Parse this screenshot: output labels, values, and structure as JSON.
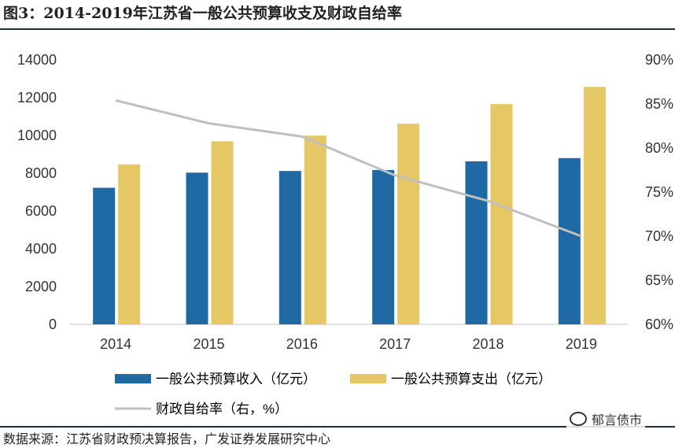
{
  "header": {
    "title": "图3：2014-2019年江苏省一般公共预算收支及财政自给率"
  },
  "footer": {
    "source": "数据来源：江苏省财政预决算报告，广发证券发展研究中心",
    "watermark": "郁言债市"
  },
  "colors": {
    "revenue": "#1f6aa5",
    "expenditure": "#e6c765",
    "ratio": "#bfbfbf",
    "axis": "#d9d9d9"
  },
  "chart_data": {
    "type": "bar",
    "categories": [
      "2014",
      "2015",
      "2016",
      "2017",
      "2018",
      "2019"
    ],
    "series": [
      {
        "name": "一般公共预算收入（亿元）",
        "type": "bar",
        "axis": "left",
        "values": [
          7230,
          8030,
          8120,
          8170,
          8630,
          8800
        ]
      },
      {
        "name": "一般公共预算支出（亿元）",
        "type": "bar",
        "axis": "left",
        "values": [
          8470,
          9690,
          9990,
          10620,
          11660,
          12570
        ]
      },
      {
        "name": "财政自给率（右，%）",
        "type": "line",
        "axis": "right",
        "values": [
          85.4,
          82.8,
          81.3,
          76.9,
          74.0,
          70.0
        ]
      }
    ],
    "ylim": [
      0,
      14000
    ],
    "yticks": [
      "0",
      "2000",
      "4000",
      "6000",
      "8000",
      "10000",
      "12000",
      "14000"
    ],
    "y2lim": [
      60,
      90
    ],
    "y2ticks": [
      "60%",
      "65%",
      "70%",
      "75%",
      "80%",
      "85%",
      "90%"
    ],
    "legend": "bottom"
  }
}
